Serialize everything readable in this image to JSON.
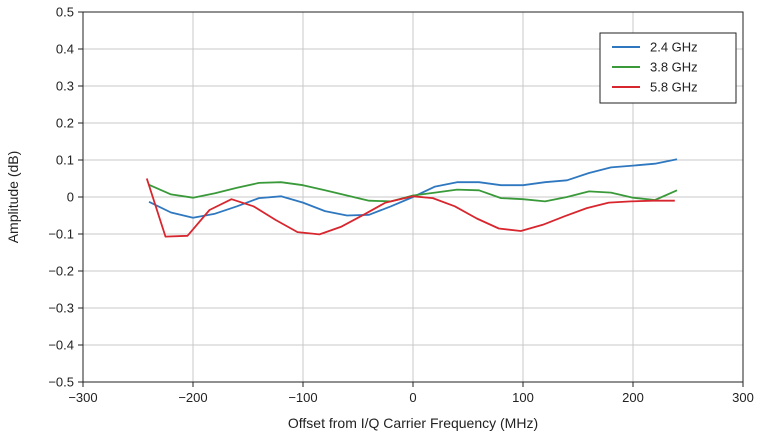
{
  "chart_data": {
    "type": "line",
    "title": "",
    "xlabel": "Offset from I/Q Carrier Frequency (MHz)",
    "ylabel": "Amplitude (dB)",
    "xlim": [
      -300,
      300
    ],
    "ylim": [
      -0.5,
      0.5
    ],
    "xticks": [
      -300,
      -200,
      -100,
      0,
      100,
      200,
      300
    ],
    "yticks": [
      -0.5,
      -0.4,
      -0.3,
      -0.2,
      -0.1,
      0,
      0.1,
      0.2,
      0.3,
      0.4,
      0.5
    ],
    "xtick_labels": [
      "−300",
      "−200",
      "−100",
      "0",
      "100",
      "200",
      "300"
    ],
    "ytick_labels": [
      "−0.5",
      "−0.4",
      "−0.3",
      "−0.2",
      "−0.1",
      "0",
      "0.1",
      "0.2",
      "0.3",
      "0.4",
      "0.5"
    ],
    "grid": true,
    "legend_position": "top-right",
    "series": [
      {
        "name": "2.4 GHz",
        "color": "#2f78c0",
        "x": [
          -240,
          -220,
          -200,
          -180,
          -160,
          -140,
          -120,
          -100,
          -80,
          -60,
          -40,
          -20,
          0,
          20,
          40,
          60,
          80,
          100,
          120,
          140,
          160,
          180,
          200,
          220,
          240
        ],
        "y": [
          -0.013,
          -0.042,
          -0.056,
          -0.045,
          -0.025,
          -0.003,
          0.002,
          -0.015,
          -0.038,
          -0.05,
          -0.048,
          -0.025,
          0.0,
          0.028,
          0.04,
          0.04,
          0.032,
          0.032,
          0.04,
          0.045,
          0.065,
          0.08,
          0.085,
          0.09,
          0.102
        ]
      },
      {
        "name": "3.8 GHz",
        "color": "#3a9a3a",
        "x": [
          -240,
          -220,
          -200,
          -180,
          -160,
          -140,
          -120,
          -100,
          -80,
          -60,
          -40,
          -20,
          0,
          20,
          40,
          60,
          80,
          100,
          120,
          140,
          160,
          180,
          200,
          220,
          240
        ],
        "y": [
          0.033,
          0.007,
          -0.002,
          0.01,
          0.025,
          0.038,
          0.04,
          0.032,
          0.018,
          0.004,
          -0.01,
          -0.012,
          0.004,
          0.012,
          0.02,
          0.018,
          -0.003,
          -0.006,
          -0.012,
          0.0,
          0.015,
          0.012,
          -0.002,
          -0.008,
          0.018
        ]
      },
      {
        "name": "5.8 GHz",
        "color": "#d8262e",
        "x": [
          -242,
          -225,
          -205,
          -185,
          -165,
          -145,
          -125,
          -105,
          -85,
          -65,
          -45,
          -25,
          0,
          18,
          38,
          58,
          78,
          98,
          118,
          138,
          158,
          178,
          198,
          218,
          238
        ],
        "y": [
          0.05,
          -0.107,
          -0.105,
          -0.035,
          -0.006,
          -0.025,
          -0.062,
          -0.095,
          -0.101,
          -0.08,
          -0.048,
          -0.015,
          0.002,
          -0.003,
          -0.025,
          -0.058,
          -0.085,
          -0.092,
          -0.075,
          -0.052,
          -0.03,
          -0.015,
          -0.012,
          -0.01,
          -0.01
        ]
      }
    ]
  }
}
